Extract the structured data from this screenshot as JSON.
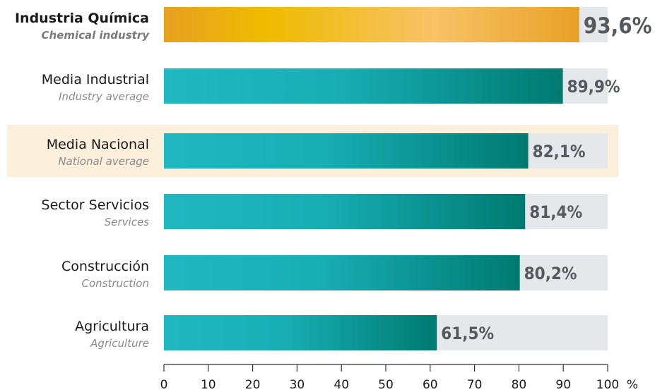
{
  "chart_data": {
    "type": "bar",
    "orientation": "horizontal",
    "unit": "%",
    "xlim": [
      0,
      100
    ],
    "x_ticks": [
      "0",
      "10",
      "20",
      "30",
      "40",
      "50",
      "60",
      "70",
      "80",
      "90",
      "100"
    ],
    "bars": [
      {
        "label_es": "Industria Química",
        "label_en": "Chemical industry",
        "value": 93.6,
        "value_label": "93,6%",
        "emphasis": true,
        "color": "#f0b400"
      },
      {
        "label_es": "Media Industrial",
        "label_en": "Industry average",
        "value": 89.9,
        "value_label": "89,9%",
        "color": "#1ab0b5"
      },
      {
        "label_es": "Media Nacional",
        "label_en": "National average",
        "value": 82.1,
        "value_label": "82,1%",
        "highlight_row": true,
        "color": "#1ab0b5"
      },
      {
        "label_es": "Sector Servicios",
        "label_en": "Services",
        "value": 81.4,
        "value_label": "81,4%",
        "color": "#1ab0b5"
      },
      {
        "label_es": "Construcción",
        "label_en": "Construction",
        "value": 80.2,
        "value_label": "80,2%",
        "color": "#1ab0b5"
      },
      {
        "label_es": "Agricultura",
        "label_en": "Agriculture",
        "value": 61.5,
        "value_label": "61,5%",
        "color": "#1ab0b5"
      }
    ],
    "colors": {
      "track": "#e4e8ea",
      "row_highlight": "#fcefdc",
      "axis": "#333333"
    }
  }
}
